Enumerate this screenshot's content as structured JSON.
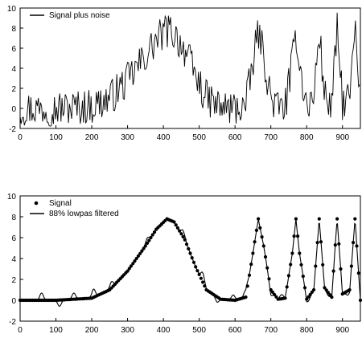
{
  "chart_data": [
    {
      "type": "line",
      "xlim": [
        0,
        950
      ],
      "ylim": [
        -2,
        10
      ],
      "x_ticks": [
        0,
        100,
        200,
        300,
        400,
        500,
        600,
        700,
        800,
        900
      ],
      "y_ticks": [
        -2,
        0,
        2,
        4,
        6,
        8,
        10
      ],
      "grid": false,
      "legend": "top-left",
      "series": [
        {
          "name": "Signal plus noise",
          "style": "noisy-line",
          "color": "#000000",
          "x": [
            0,
            100,
            200,
            250,
            300,
            350,
            380,
            410,
            430,
            460,
            490,
            520,
            560,
            600,
            630,
            650,
            665,
            680,
            700,
            720,
            740,
            760,
            770,
            780,
            800,
            820,
            835,
            850,
            870,
            885,
            900,
            920,
            935,
            950
          ],
          "values": [
            0,
            0,
            0.2,
            1.0,
            2.8,
            5.2,
            6.8,
            7.8,
            7.5,
            5.8,
            3.2,
            1.0,
            0.1,
            0,
            0.3,
            4.5,
            7.8,
            5.2,
            1.0,
            0.1,
            0.2,
            4.5,
            7.8,
            4.5,
            0.1,
            1.0,
            7.8,
            1.2,
            0.3,
            7.8,
            0.6,
            1.0,
            7.8,
            0
          ]
        }
      ]
    },
    {
      "type": "line",
      "xlim": [
        0,
        950
      ],
      "ylim": [
        -2,
        10
      ],
      "x_ticks": [
        0,
        100,
        200,
        300,
        400,
        500,
        600,
        700,
        800,
        900
      ],
      "y_ticks": [
        -2,
        0,
        2,
        4,
        6,
        8,
        10
      ],
      "grid": false,
      "legend": "top-left",
      "series": [
        {
          "name": "Signal",
          "style": "dots",
          "color": "#000000",
          "x": [
            0,
            100,
            200,
            250,
            300,
            350,
            380,
            410,
            430,
            460,
            490,
            520,
            560,
            600,
            630,
            650,
            665,
            680,
            700,
            720,
            740,
            760,
            770,
            780,
            800,
            820,
            835,
            850,
            870,
            885,
            900,
            920,
            935,
            950
          ],
          "values": [
            0,
            0,
            0.2,
            1.0,
            2.8,
            5.2,
            6.8,
            7.8,
            7.5,
            5.8,
            3.2,
            1.0,
            0.1,
            0,
            0.3,
            4.5,
            7.8,
            5.2,
            1.0,
            0.1,
            0.2,
            4.5,
            7.8,
            4.5,
            0.1,
            1.0,
            7.8,
            1.2,
            0.3,
            7.8,
            0.6,
            1.0,
            7.8,
            0
          ]
        },
        {
          "name": "88% lowpas filtered",
          "style": "ringing-line",
          "color": "#000000",
          "x": [
            0,
            100,
            200,
            250,
            300,
            350,
            380,
            410,
            430,
            460,
            490,
            520,
            560,
            600,
            630,
            650,
            665,
            680,
            700,
            720,
            740,
            760,
            770,
            780,
            800,
            820,
            835,
            850,
            870,
            885,
            900,
            920,
            935,
            950
          ],
          "values": [
            0,
            0,
            0.2,
            1.0,
            2.8,
            5.2,
            6.8,
            7.8,
            7.5,
            5.8,
            3.2,
            1.0,
            0.1,
            0,
            0.3,
            4.5,
            7.8,
            5.2,
            1.0,
            0.1,
            0.2,
            4.5,
            7.8,
            4.5,
            0.1,
            1.0,
            7.8,
            1.2,
            0.3,
            7.8,
            0.6,
            1.0,
            7.8,
            0
          ]
        }
      ]
    }
  ]
}
